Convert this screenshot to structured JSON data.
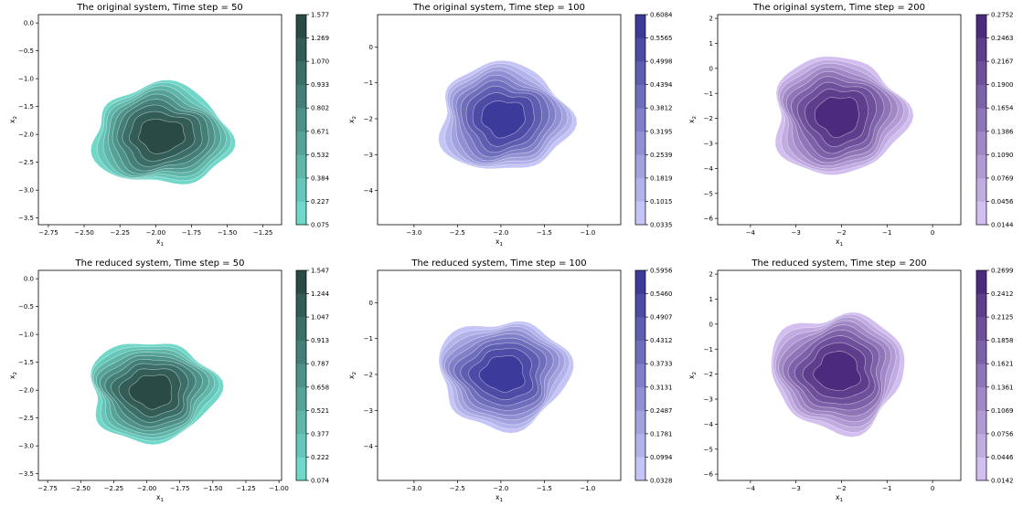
{
  "chart_data": [
    {
      "type": "contour",
      "title": "The original system, Time step = 50",
      "xlabel": "x1",
      "ylabel": "x2",
      "xlim": [
        -2.82,
        -1.12
      ],
      "ylim": [
        -3.62,
        0.15
      ],
      "xticks": [
        "-2.75",
        "-2.50",
        "-2.25",
        "-2.00",
        "-1.75",
        "-1.50",
        "-1.25"
      ],
      "yticks": [
        "0.0",
        "-0.5",
        "-1.0",
        "-1.5",
        "-2.0",
        "-2.5",
        "-3.0",
        "-3.5"
      ],
      "center": [
        -1.96,
        -2.02
      ],
      "spread": [
        0.48,
        0.9
      ],
      "colormap": [
        "#6fd8c9",
        "#2a4a46"
      ],
      "levels": [
        "0.075",
        "0.227",
        "0.384",
        "0.532",
        "0.671",
        "0.802",
        "0.933",
        "1.070",
        "1.269",
        "1.577"
      ]
    },
    {
      "type": "contour",
      "title": "The original system, Time step = 100",
      "xlabel": "x1",
      "ylabel": "x2",
      "xlim": [
        -3.42,
        -0.62
      ],
      "ylim": [
        -4.95,
        0.9
      ],
      "xticks": [
        "-3.0",
        "-2.5",
        "-2.0",
        "-1.5",
        "-1.0"
      ],
      "yticks": [
        "0",
        "-1",
        "-2",
        "-3",
        "-4"
      ],
      "center": [
        -1.97,
        -1.98
      ],
      "spread": [
        0.75,
        1.5
      ],
      "colormap": [
        "#c4c4f6",
        "#3c3a9a"
      ],
      "levels": [
        "0.0335",
        "0.1015",
        "0.1819",
        "0.2539",
        "0.3195",
        "0.3812",
        "0.4394",
        "0.4998",
        "0.5565",
        "0.6084"
      ]
    },
    {
      "type": "contour",
      "title": "The original system, Time step = 200",
      "xlabel": "x1",
      "ylabel": "x2",
      "xlim": [
        -4.72,
        0.62
      ],
      "ylim": [
        -6.25,
        2.15
      ],
      "xticks": [
        "-4",
        "-3",
        "-2",
        "-1",
        "0"
      ],
      "yticks": [
        "2",
        "1",
        "0",
        "-1",
        "-2",
        "-3",
        "-4",
        "-5",
        "-6"
      ],
      "center": [
        -2.08,
        -1.9
      ],
      "spread": [
        1.45,
        2.35
      ],
      "colormap": [
        "#d2bff0",
        "#4c2a7e"
      ],
      "levels": [
        "0.0144",
        "0.0456",
        "0.0769",
        "0.1090",
        "0.1386",
        "0.1654",
        "0.1900",
        "0.2167",
        "0.2463",
        "0.2752"
      ]
    },
    {
      "type": "contour",
      "title": "The reduced system, Time step = 50",
      "xlabel": "x1",
      "ylabel": "x2",
      "xlim": [
        -2.82,
        -0.98
      ],
      "ylim": [
        -3.62,
        0.15
      ],
      "xticks": [
        "-2.75",
        "-2.50",
        "-2.25",
        "-2.00",
        "-1.75",
        "-1.50",
        "-1.25",
        "-1.00"
      ],
      "yticks": [
        "0.0",
        "-0.5",
        "-1.0",
        "-1.5",
        "-2.0",
        "-2.5",
        "-3.0",
        "-3.5"
      ],
      "center": [
        -1.96,
        -2.02
      ],
      "spread": [
        0.48,
        0.9
      ],
      "colormap": [
        "#6fd8c9",
        "#2a4a46"
      ],
      "levels": [
        "0.074",
        "0.222",
        "0.377",
        "0.521",
        "0.658",
        "0.787",
        "0.913",
        "1.047",
        "1.244",
        "1.547"
      ]
    },
    {
      "type": "contour",
      "title": "The reduced system, Time step = 100",
      "xlabel": "x1",
      "ylabel": "x2",
      "xlim": [
        -3.42,
        -0.62
      ],
      "ylim": [
        -4.95,
        0.9
      ],
      "xticks": [
        "-3.0",
        "-2.5",
        "-2.0",
        "-1.5",
        "-1.0"
      ],
      "yticks": [
        "0",
        "-1",
        "-2",
        "-3",
        "-4"
      ],
      "center": [
        -1.97,
        -1.98
      ],
      "spread": [
        0.75,
        1.5
      ],
      "colormap": [
        "#c4c4f6",
        "#3c3a9a"
      ],
      "levels": [
        "0.0328",
        "0.0994",
        "0.1781",
        "0.2487",
        "0.3131",
        "0.3733",
        "0.4312",
        "0.4907",
        "0.5460",
        "0.5956"
      ]
    },
    {
      "type": "contour",
      "title": "The reduced system, Time step = 200",
      "xlabel": "x1",
      "ylabel": "x2",
      "xlim": [
        -4.72,
        0.62
      ],
      "ylim": [
        -6.25,
        2.15
      ],
      "xticks": [
        "-4",
        "-3",
        "-2",
        "-1",
        "0"
      ],
      "yticks": [
        "2",
        "1",
        "0",
        "-1",
        "-2",
        "-3",
        "-4",
        "-5",
        "-6"
      ],
      "center": [
        -2.08,
        -1.9
      ],
      "spread": [
        1.45,
        2.35
      ],
      "colormap": [
        "#d2bff0",
        "#4c2a7e"
      ],
      "levels": [
        "0.0142",
        "0.0446",
        "0.0756",
        "0.1069",
        "0.1361",
        "0.1621",
        "0.1858",
        "0.2125",
        "0.2412",
        "0.2699"
      ]
    }
  ]
}
